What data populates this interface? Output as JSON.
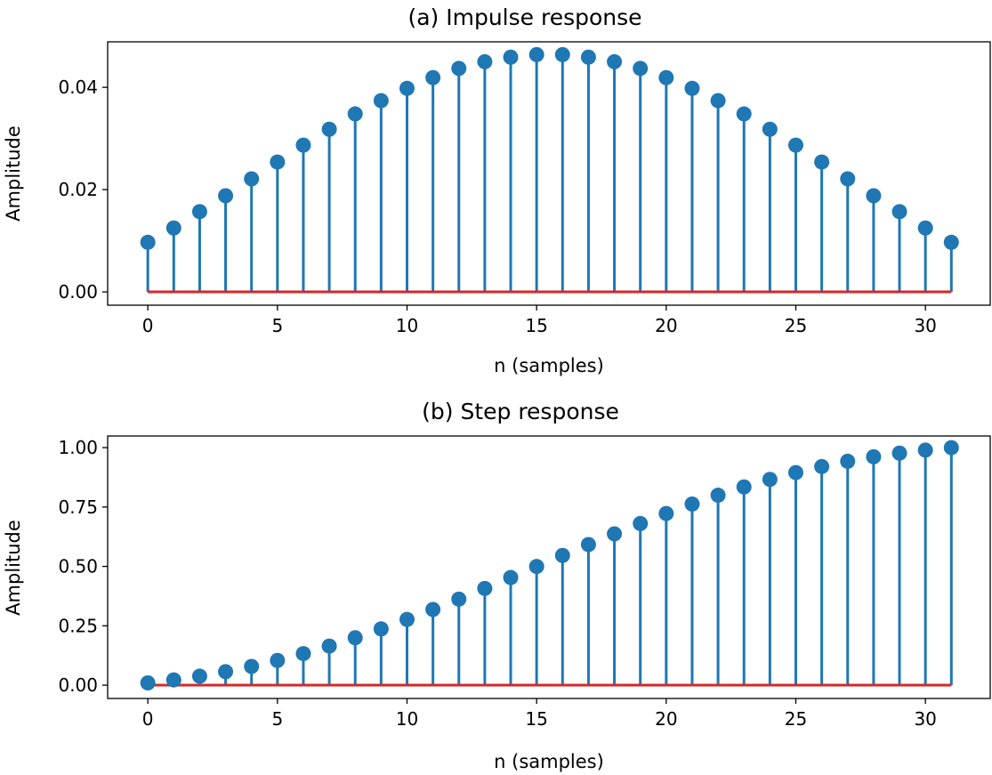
{
  "chart_data": [
    {
      "type": "stem",
      "title": "(a)  Impulse response",
      "xlabel": "n (samples)",
      "ylabel": "Amplitude",
      "xlim": [
        -1.55,
        32.5
      ],
      "ylim": [
        -0.0026,
        0.0489
      ],
      "xticks": [
        0,
        5,
        10,
        15,
        20,
        25,
        30
      ],
      "yticks": [
        "0.00",
        "0.02",
        "0.04"
      ],
      "ytick_values": [
        0,
        0.02,
        0.04
      ],
      "grid": false,
      "stem_color": "#1f77b4",
      "baseline_color": "#d62728",
      "x": [
        0,
        1,
        2,
        3,
        4,
        5,
        6,
        7,
        8,
        9,
        10,
        11,
        12,
        13,
        14,
        15,
        16,
        17,
        18,
        19,
        20,
        21,
        22,
        23,
        24,
        25,
        26,
        27,
        28,
        29,
        30,
        31
      ],
      "values": [
        0.0097,
        0.0125,
        0.0157,
        0.0188,
        0.0221,
        0.0254,
        0.0287,
        0.0318,
        0.0348,
        0.0374,
        0.0398,
        0.0419,
        0.0437,
        0.045,
        0.0459,
        0.0464,
        0.0464,
        0.0459,
        0.045,
        0.0437,
        0.0419,
        0.0398,
        0.0374,
        0.0348,
        0.0318,
        0.0287,
        0.0254,
        0.0221,
        0.0188,
        0.0157,
        0.0125,
        0.0097
      ]
    },
    {
      "type": "stem",
      "title": "(b)  Step response",
      "xlabel": "n (samples)",
      "ylabel": "Amplitude",
      "xlim": [
        -1.55,
        32.5
      ],
      "ylim": [
        -0.056,
        1.049
      ],
      "xticks": [
        0,
        5,
        10,
        15,
        20,
        25,
        30
      ],
      "yticks": [
        "0.00",
        "0.25",
        "0.50",
        "0.75",
        "1.00"
      ],
      "ytick_values": [
        0,
        0.25,
        0.5,
        0.75,
        1.0
      ],
      "grid": false,
      "stem_color": "#1f77b4",
      "baseline_color": "#d62728",
      "x": [
        0,
        1,
        2,
        3,
        4,
        5,
        6,
        7,
        8,
        9,
        10,
        11,
        12,
        13,
        14,
        15,
        16,
        17,
        18,
        19,
        20,
        21,
        22,
        23,
        24,
        25,
        26,
        27,
        28,
        29,
        30,
        31
      ],
      "values": [
        0.0097,
        0.0222,
        0.0379,
        0.0567,
        0.0788,
        0.1042,
        0.1329,
        0.1647,
        0.1995,
        0.2369,
        0.2767,
        0.3186,
        0.3623,
        0.4073,
        0.4532,
        0.4996,
        0.546,
        0.5919,
        0.6369,
        0.6806,
        0.7225,
        0.7623,
        0.7997,
        0.8345,
        0.8663,
        0.895,
        0.9204,
        0.9425,
        0.9613,
        0.977,
        0.9895,
        1.0
      ]
    }
  ]
}
